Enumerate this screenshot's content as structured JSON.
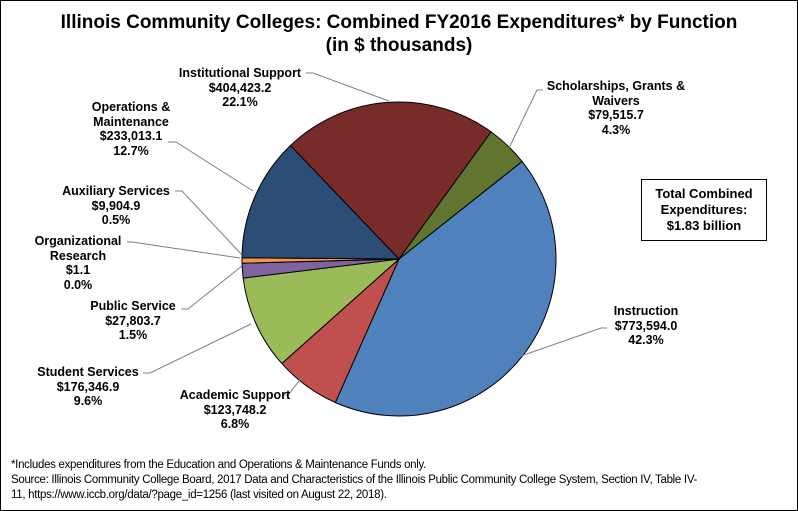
{
  "chart_data": {
    "type": "pie",
    "title_line1": "Illinois Community Colleges: Combined FY2016 Expenditures* by Function",
    "title_line2": "(in $ thousands)",
    "unit": "$ thousands",
    "slices": [
      {
        "name": "Instruction",
        "value": 773594.0,
        "value_label": "$773,594.0",
        "percent_label": "42.3%",
        "color": "#4F81BD"
      },
      {
        "name": "Academic Support",
        "value": 123748.2,
        "value_label": "$123,748.2",
        "percent_label": "6.8%",
        "color": "#C0504D"
      },
      {
        "name": "Student Services",
        "value": 176346.9,
        "value_label": "$176,346.9",
        "percent_label": "9.6%",
        "color": "#9BBB59"
      },
      {
        "name": "Public Service",
        "value": 27803.7,
        "value_label": "$27,803.7",
        "percent_label": "1.5%",
        "color": "#8064A2"
      },
      {
        "name": "Organizational Research",
        "name_lines": [
          "Organizational",
          "Research"
        ],
        "value": 1.1,
        "value_label": "$1.1",
        "percent_label": "0.0%",
        "color": "#4BACC6"
      },
      {
        "name": "Auxiliary Services",
        "value": 9904.9,
        "value_label": "$9,904.9",
        "percent_label": "0.5%",
        "color": "#F79646"
      },
      {
        "name": "Operations & Maintenance",
        "name_lines": [
          "Operations &",
          "Maintenance"
        ],
        "value": 233013.1,
        "value_label": "$233,013.1",
        "percent_label": "12.7%",
        "color": "#2C4D75"
      },
      {
        "name": "Institutional Support",
        "value": 404423.2,
        "value_label": "$404,423.2",
        "percent_label": "22.1%",
        "color": "#772C2A"
      },
      {
        "name": "Scholarships, Grants & Waivers",
        "name_lines": [
          "Scholarships, Grants &",
          "Waivers"
        ],
        "value": 79515.7,
        "value_label": "$79,515.7",
        "percent_label": "4.3%",
        "color": "#5F7530"
      }
    ],
    "annotation_lines": [
      "Total Combined",
      "Expenditures:",
      "$1.83 billion"
    ]
  },
  "notes": [
    "*Includes expenditures from the Education and Operations & Maintenance Funds only.",
    "Source: Illinois Community College Board, 2017 Data and Characteristics of the Illinois Public Community College System, Section IV,  Table IV-",
    "11, https://www.iccb.org/data/?page_id=1256 (last visited on August 22, 2018)."
  ]
}
